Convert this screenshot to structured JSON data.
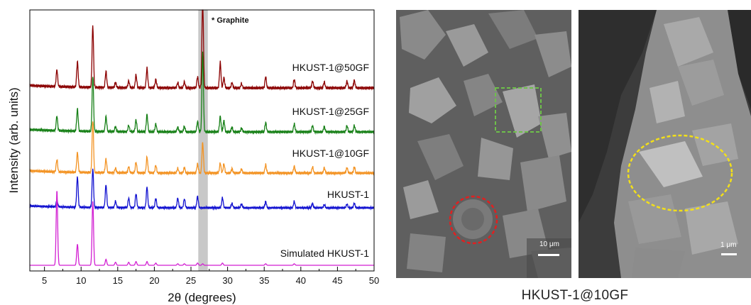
{
  "chart_data": {
    "type": "line",
    "title": "",
    "xlabel": "2θ (degrees)",
    "ylabel": "Intensity (arb. units)",
    "xlim": [
      3,
      50
    ],
    "xticks": [
      5,
      10,
      15,
      20,
      25,
      30,
      35,
      40,
      45,
      50
    ],
    "y_ticks_shown": false,
    "legend": "inline labels right of each trace",
    "shaded_region": {
      "x": [
        26.0,
        27.3
      ],
      "color": "#c8c8c8"
    },
    "annotation": "* Graphite",
    "series": [
      {
        "name": "HKUST-1@50GF",
        "color": "#8b0000",
        "peaks": [
          [
            6.7,
            0.2
          ],
          [
            9.5,
            0.3
          ],
          [
            11.6,
            0.72
          ],
          [
            13.4,
            0.19
          ],
          [
            14.7,
            0.06
          ],
          [
            16.5,
            0.08
          ],
          [
            17.5,
            0.15
          ],
          [
            19.0,
            0.23
          ],
          [
            20.2,
            0.1
          ],
          [
            23.2,
            0.06
          ],
          [
            24.1,
            0.07
          ],
          [
            25.9,
            0.13
          ],
          [
            26.6,
            1.05
          ],
          [
            29.0,
            0.3
          ],
          [
            29.5,
            0.12
          ],
          [
            30.6,
            0.06
          ],
          [
            31.9,
            0.05
          ],
          [
            35.2,
            0.13
          ],
          [
            39.1,
            0.1
          ],
          [
            41.6,
            0.08
          ],
          [
            43.2,
            0.07
          ],
          [
            46.3,
            0.08
          ],
          [
            47.3,
            0.09
          ]
        ]
      },
      {
        "name": "HKUST-1@25GF",
        "color": "#178017",
        "peaks": [
          [
            6.7,
            0.18
          ],
          [
            9.5,
            0.28
          ],
          [
            11.6,
            0.7
          ],
          [
            13.4,
            0.19
          ],
          [
            14.7,
            0.06
          ],
          [
            16.5,
            0.08
          ],
          [
            17.5,
            0.15
          ],
          [
            19.0,
            0.22
          ],
          [
            20.2,
            0.1
          ],
          [
            23.2,
            0.06
          ],
          [
            24.1,
            0.07
          ],
          [
            25.9,
            0.13
          ],
          [
            26.6,
            1.0
          ],
          [
            29.0,
            0.2
          ],
          [
            29.5,
            0.14
          ],
          [
            30.6,
            0.06
          ],
          [
            31.9,
            0.05
          ],
          [
            35.2,
            0.12
          ],
          [
            39.1,
            0.1
          ],
          [
            41.6,
            0.08
          ],
          [
            43.2,
            0.07
          ],
          [
            46.3,
            0.08
          ],
          [
            47.3,
            0.08
          ]
        ]
      },
      {
        "name": "HKUST-1@10GF",
        "color": "#f39323",
        "peaks": [
          [
            6.7,
            0.16
          ],
          [
            9.5,
            0.26
          ],
          [
            11.6,
            0.68
          ],
          [
            13.4,
            0.18
          ],
          [
            14.7,
            0.06
          ],
          [
            16.5,
            0.08
          ],
          [
            17.5,
            0.14
          ],
          [
            19.0,
            0.21
          ],
          [
            20.2,
            0.1
          ],
          [
            23.2,
            0.06
          ],
          [
            24.1,
            0.07
          ],
          [
            25.9,
            0.12
          ],
          [
            26.6,
            0.4
          ],
          [
            29.0,
            0.13
          ],
          [
            29.5,
            0.12
          ],
          [
            30.6,
            0.06
          ],
          [
            31.9,
            0.05
          ],
          [
            35.2,
            0.11
          ],
          [
            39.1,
            0.09
          ],
          [
            41.6,
            0.08
          ],
          [
            43.2,
            0.07
          ],
          [
            46.3,
            0.07
          ],
          [
            47.3,
            0.08
          ]
        ]
      },
      {
        "name": "HKUST-1",
        "color": "#1010d0",
        "peaks": [
          [
            6.7,
            0.1
          ],
          [
            9.5,
            0.48
          ],
          [
            11.6,
            0.6
          ],
          [
            13.4,
            0.36
          ],
          [
            14.7,
            0.1
          ],
          [
            16.5,
            0.15
          ],
          [
            17.5,
            0.22
          ],
          [
            19.0,
            0.33
          ],
          [
            20.2,
            0.15
          ],
          [
            23.2,
            0.15
          ],
          [
            24.1,
            0.14
          ],
          [
            25.9,
            0.18
          ],
          [
            29.3,
            0.16
          ],
          [
            30.6,
            0.07
          ],
          [
            31.9,
            0.06
          ],
          [
            35.2,
            0.1
          ],
          [
            39.1,
            0.1
          ],
          [
            41.6,
            0.07
          ],
          [
            43.2,
            0.05
          ],
          [
            46.3,
            0.06
          ],
          [
            47.3,
            0.07
          ]
        ]
      },
      {
        "name": "Simulated HKUST-1",
        "color": "#d21fd2",
        "peaks": [
          [
            6.7,
            1.0
          ],
          [
            9.5,
            0.28
          ],
          [
            11.6,
            0.85
          ],
          [
            13.4,
            0.08
          ],
          [
            14.7,
            0.04
          ],
          [
            16.5,
            0.04
          ],
          [
            17.5,
            0.05
          ],
          [
            19.0,
            0.05
          ],
          [
            20.2,
            0.03
          ],
          [
            23.2,
            0.02
          ],
          [
            24.1,
            0.02
          ],
          [
            25.9,
            0.03
          ],
          [
            26.6,
            0.02
          ],
          [
            29.3,
            0.03
          ],
          [
            35.2,
            0.02
          ],
          [
            39.1,
            0.02
          ]
        ]
      }
    ]
  },
  "sem": {
    "scale_left": "10 μm",
    "scale_right": "1 μm",
    "caption": "HKUST-1@10GF"
  }
}
